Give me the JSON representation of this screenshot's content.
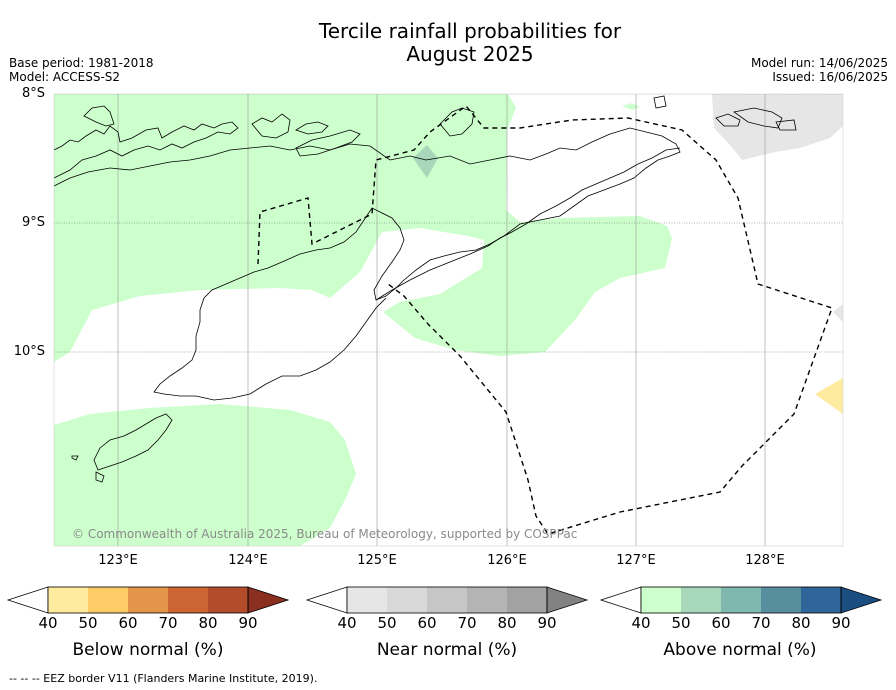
{
  "title_line1": "Tercile rainfall probabilities for",
  "title_line2": "August 2025",
  "meta_left": [
    "Base period: 1981-2018",
    "Model: ACCESS-S2"
  ],
  "meta_right": [
    "Model run: 14/06/2025",
    "Issued: 16/06/2025"
  ],
  "lat_labels": [
    "8°S",
    "9°S",
    "10°S"
  ],
  "lon_labels": [
    "123°E",
    "124°E",
    "125°E",
    "126°E",
    "127°E",
    "128°E"
  ],
  "copyright": "© Commonwealth of Australia 2025, Bureau of Meteorology, supported by COSPPac",
  "footer": "--  --  -- EEZ border V11 (Flanders Marine Institute, 2019).",
  "colors": {
    "land_outline": "#000000",
    "above_40": "#ccffcc",
    "above_50": "#a6d8b9",
    "near_40": "#e6e6e6",
    "below_40": "#ffeb9f",
    "grid": "#999999"
  },
  "colorbars": [
    {
      "title": "Below normal (%)",
      "ticks": [
        "40",
        "50",
        "60",
        "70",
        "80",
        "90"
      ],
      "colors": [
        "#ffffff",
        "#ffeb9f",
        "#ffcb66",
        "#e4954a",
        "#cd6533",
        "#b24c2a",
        "#8b2f20"
      ]
    },
    {
      "title": "Near normal (%)",
      "ticks": [
        "40",
        "50",
        "60",
        "70",
        "80",
        "90"
      ],
      "colors": [
        "#ffffff",
        "#e6e6e6",
        "#d8d8d8",
        "#c6c6c6",
        "#b4b4b4",
        "#a2a2a2",
        "#828282"
      ]
    },
    {
      "title": "Above normal (%)",
      "ticks": [
        "40",
        "50",
        "60",
        "70",
        "80",
        "90"
      ],
      "colors": [
        "#ffffff",
        "#ccffcc",
        "#a6d8b9",
        "#80b8b0",
        "#578f9f",
        "#2f6599",
        "#1a4d80"
      ]
    }
  ]
}
